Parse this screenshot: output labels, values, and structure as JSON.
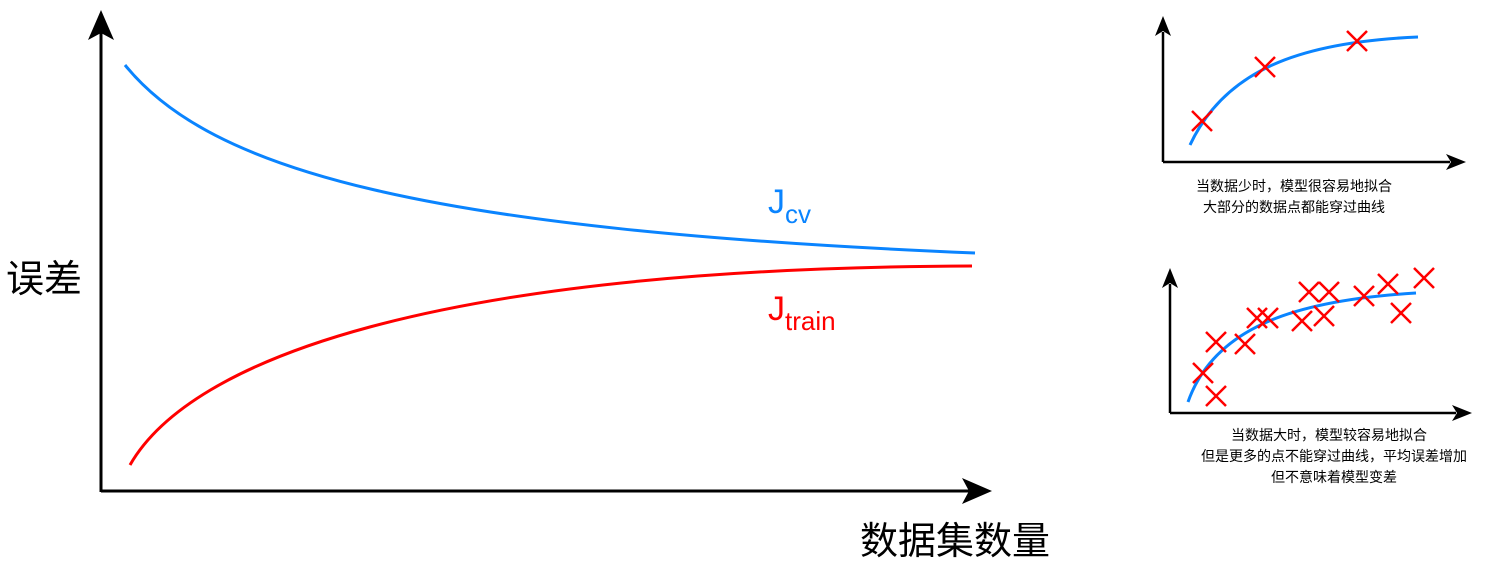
{
  "main_plot": {
    "y_label": "误差",
    "x_label": "数据集数量",
    "cv_curve": {
      "label_main": "J",
      "label_sub": "cv",
      "color": "#0080ff"
    },
    "train_curve": {
      "label_main": "J",
      "label_sub": "train",
      "color": "#ff0000"
    }
  },
  "small_plot_1": {
    "caption_line1": "当数据少时，模型很容易地拟合",
    "caption_line2": "大部分的数据点都能穿过曲线",
    "curve_color": "#0080ff",
    "marker_color": "#ff0000"
  },
  "small_plot_2": {
    "caption_line1": "当数据大时，模型较容易地拟合",
    "caption_line2": "但是更多的点不能穿过曲线，平均误差增加",
    "caption_line3": "但不意味着模型变差",
    "curve_color": "#0080ff",
    "marker_color": "#ff0000"
  }
}
